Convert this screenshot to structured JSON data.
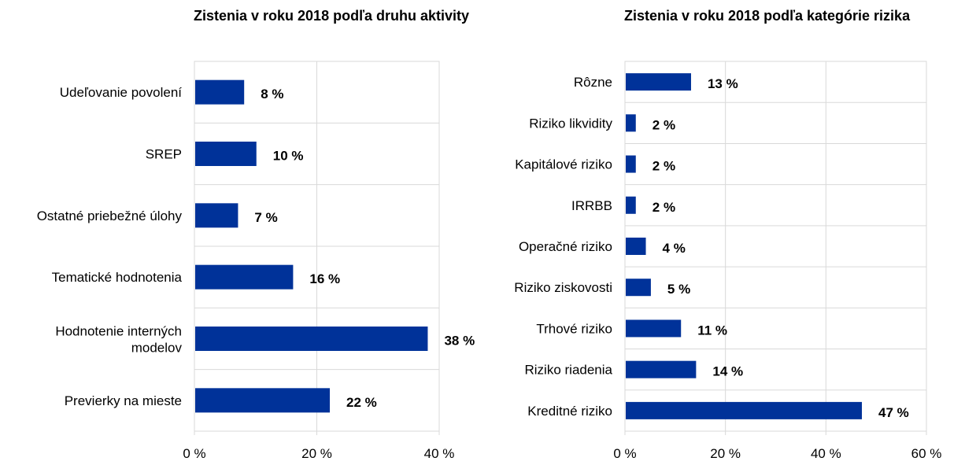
{
  "chart_data": [
    {
      "type": "bar",
      "orientation": "horizontal",
      "title": "Zistenia v roku 2018 podľa druhu aktivity",
      "categories": [
        "Udeľovanie povolení",
        "SREP",
        "Ostatné priebežné úlohy",
        "Tematické hodnotenia",
        "Hodnotenie interných modelov",
        "Previerky na mieste"
      ],
      "values": [
        8,
        10,
        7,
        16,
        38,
        22
      ],
      "value_labels": [
        "8 %",
        "10 %",
        "7 %",
        "16 %",
        "38 %",
        "22 %"
      ],
      "xlim": [
        0,
        40
      ],
      "ticks": [
        0,
        20,
        40
      ],
      "tick_labels": [
        "0 %",
        "20 %",
        "40 %"
      ],
      "color": "#003299"
    },
    {
      "type": "bar",
      "orientation": "horizontal",
      "title": "Zistenia v roku 2018 podľa kategórie rizika",
      "categories": [
        "Rôzne",
        "Riziko likvidity",
        "Kapitálové riziko",
        "IRRBB",
        "Operačné riziko",
        "Riziko ziskovosti",
        "Trhové riziko",
        "Riziko riadenia",
        "Kreditné riziko"
      ],
      "values": [
        13,
        2,
        2,
        2,
        4,
        5,
        11,
        14,
        47
      ],
      "value_labels": [
        "13 %",
        "2 %",
        "2 %",
        "2 %",
        "4 %",
        "5 %",
        "11 %",
        "14 %",
        "47 %"
      ],
      "xlim": [
        0,
        60
      ],
      "ticks": [
        0,
        20,
        40,
        60
      ],
      "tick_labels": [
        "0 %",
        "20 %",
        "40 %",
        "60 %"
      ],
      "color": "#003299"
    }
  ]
}
